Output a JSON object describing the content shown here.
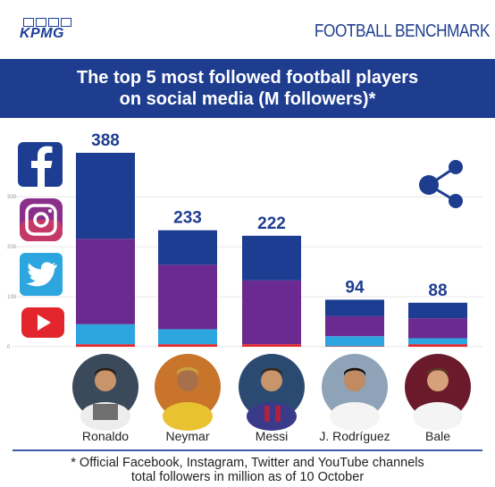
{
  "header": {
    "logo_text": "KPMG",
    "brand": "FOOTBALL BENCHMARK"
  },
  "banner": {
    "line1": "The top 5 most followed football players",
    "line2": "on social media (M followers)*"
  },
  "footnote": {
    "line1": "* Official Facebook, Instagram, Twitter and YouTube channels",
    "line2": "total followers in million as of 10 October"
  },
  "colors": {
    "facebook": "#1c3d92",
    "instagram": "#6b2a8f",
    "twitter": "#2da6e0",
    "youtube": "#e3262d",
    "total_label": "#1e3d8f"
  },
  "icons": [
    "facebook-icon",
    "instagram-icon",
    "twitter-icon",
    "youtube-icon",
    "share-icon"
  ],
  "chart_data": {
    "type": "bar",
    "stacked": true,
    "categories": [
      "Ronaldo",
      "Neymar",
      "Messi",
      "J. Rodríguez",
      "Bale"
    ],
    "totals": [
      388,
      233,
      222,
      94,
      88
    ],
    "total_labels": [
      "388",
      "233",
      "222",
      "94",
      "88"
    ],
    "series": [
      {
        "values": [
          5,
          5,
          5,
          1,
          5
        ],
        "color": "#e3262d"
      },
      {
        "values": [
          40,
          30,
          0,
          20,
          12
        ],
        "color": "#2da6e0"
      },
      {
        "values": [
          171,
          129,
          128,
          40,
          40
        ],
        "color": "#6b2a8f"
      },
      {
        "values": [
          172,
          69,
          89,
          33,
          31
        ],
        "color": "#1c3d92"
      }
    ],
    "yticks": [
      {
        "value": 0,
        "label": "0"
      },
      {
        "value": 100,
        "label": "100"
      },
      {
        "value": 200,
        "label": "200"
      },
      {
        "value": 300,
        "label": "300"
      }
    ],
    "ylim": [
      0,
      388
    ]
  }
}
